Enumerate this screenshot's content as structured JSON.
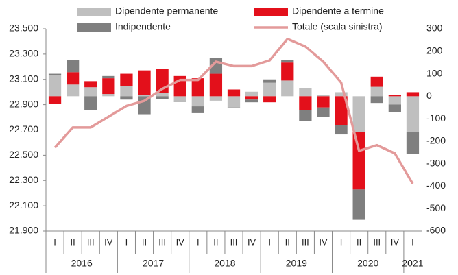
{
  "chart_data": {
    "type": "bar",
    "categories": [
      "I",
      "II",
      "III",
      "IV",
      "I",
      "II",
      "III",
      "IV",
      "I",
      "II",
      "III",
      "IV",
      "I",
      "II",
      "III",
      "IV",
      "I",
      "II",
      "III",
      "IV",
      "I"
    ],
    "years": [
      "2016",
      "2017",
      "2018",
      "2019",
      "2020",
      "2021"
    ],
    "series": [
      {
        "name": "Dipendente permanente",
        "color": "#bfbfbf",
        "axis": "y2",
        "values": [
          95,
          52,
          40,
          10,
          45,
          5,
          15,
          -20,
          -45,
          -20,
          -50,
          20,
          60,
          70,
          35,
          5,
          18,
          -160,
          42,
          -37,
          -160
        ]
      },
      {
        "name": "Dipendente a termine",
        "color": "#e3101b",
        "axis": "y2",
        "values": [
          -35,
          55,
          27,
          70,
          55,
          110,
          105,
          90,
          80,
          100,
          30,
          -15,
          -27,
          80,
          -60,
          -50,
          -130,
          -255,
          45,
          5,
          18
        ]
      },
      {
        "name": "Indipendente",
        "color": "#7f7f7f",
        "axis": "y2",
        "values": [
          5,
          55,
          -60,
          10,
          -15,
          -80,
          -12,
          -5,
          -30,
          70,
          -3,
          -12,
          15,
          12,
          -50,
          -42,
          -40,
          -135,
          -30,
          -33,
          -98
        ]
      },
      {
        "name": "Totale (scala sinistra)",
        "color": "#e39a9a",
        "type": "line",
        "axis": "y",
        "values": [
          22560,
          22720,
          22720,
          22805,
          22890,
          22930,
          23025,
          23095,
          23095,
          23240,
          23205,
          23205,
          23250,
          23420,
          23360,
          23240,
          23075,
          22535,
          22580,
          22515,
          22275
        ]
      }
    ],
    "ylim": [
      21900,
      23500
    ],
    "yticks": [
      {
        "value": 21900,
        "label": "21.900"
      },
      {
        "value": 22100,
        "label": "22.100"
      },
      {
        "value": 22300,
        "label": "22.300"
      },
      {
        "value": 22500,
        "label": "22.500"
      },
      {
        "value": 22700,
        "label": "22.700"
      },
      {
        "value": 22900,
        "label": "22.900"
      },
      {
        "value": 23100,
        "label": "23.100"
      },
      {
        "value": 23300,
        "label": "23.300"
      },
      {
        "value": 23500,
        "label": "23.500"
      }
    ],
    "y2lim": [
      -600,
      300
    ],
    "y2ticks": [
      -600,
      -500,
      -400,
      -300,
      -200,
      -100,
      0,
      100,
      200,
      300
    ]
  }
}
